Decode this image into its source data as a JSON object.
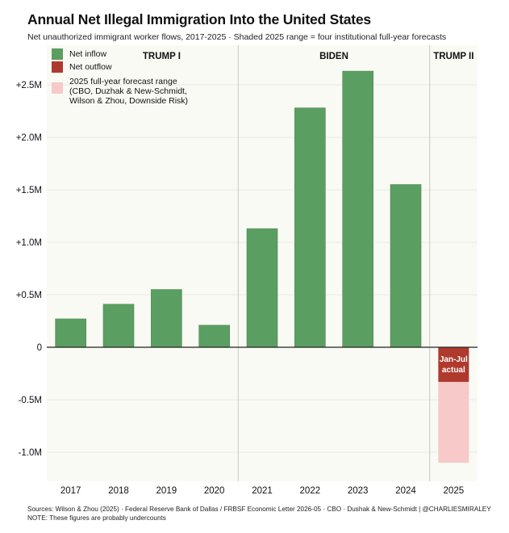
{
  "chart_data": {
    "type": "bar",
    "title": "Annual Net Illegal Immigration Into the United States",
    "subtitle": "Net unauthorized immigrant worker flows, 2017-2025  ·  Shaded 2025 range = four institutional full-year forecasts",
    "categories": [
      "2017",
      "2018",
      "2019",
      "2020",
      "2021",
      "2022",
      "2023",
      "2024",
      "2025"
    ],
    "series": [
      {
        "name": "Net inflow",
        "values": [
          0.27,
          0.41,
          0.55,
          0.21,
          1.13,
          2.28,
          2.63,
          1.55,
          null
        ]
      },
      {
        "name": "Net outflow",
        "values": [
          null,
          null,
          null,
          null,
          null,
          null,
          null,
          null,
          -0.33
        ]
      }
    ],
    "forecast_range_2025": [
      -1.1,
      -0.33
    ],
    "ylim": [
      -1.25,
      2.75
    ],
    "yticks": [
      -1.0,
      -0.5,
      0,
      0.5,
      1.0,
      1.5,
      2.0,
      2.5
    ],
    "ytick_labels": [
      "-1.0M",
      "-0.5M",
      "0",
      "+0.5M",
      "+1.0M",
      "+1.5M",
      "+2.0M",
      "+2.5M"
    ],
    "xlabel": "",
    "ylabel": "",
    "eras": [
      {
        "label": "TRUMP I",
        "from": "2017",
        "to": "2020"
      },
      {
        "label": "BIDEN",
        "from": "2021",
        "to": "2024"
      },
      {
        "label": "TRUMP II",
        "from": "2025",
        "to": "2025"
      }
    ],
    "annotation": {
      "line1": "Jan-Jul",
      "line2": "actual"
    },
    "legend": {
      "position": "top-left",
      "inflow": "Net inflow",
      "outflow": "Net outflow",
      "range_line1": "2025 full-year forecast range",
      "range_line2": "(CBO, Duzhak & New-Schmidt,",
      "range_line3": "Wilson & Zhou, Downside Risk)"
    }
  },
  "colors": {
    "inflow": "#5b9e62",
    "outflow": "#b0392d",
    "range": "#f7c9c9",
    "plot_bg": "#fafaf4"
  },
  "footer": {
    "sources": "Sources: Wilson & Zhou (2025)  ·  Federal Reserve Bank of Dallas / FRBSF Economic Letter 2026-05  ·  CBO  ·  Dushak & New-Schmidt  |  @CHARLIESMIRALEY",
    "note": "NOTE: These figures are probably undercounts"
  }
}
